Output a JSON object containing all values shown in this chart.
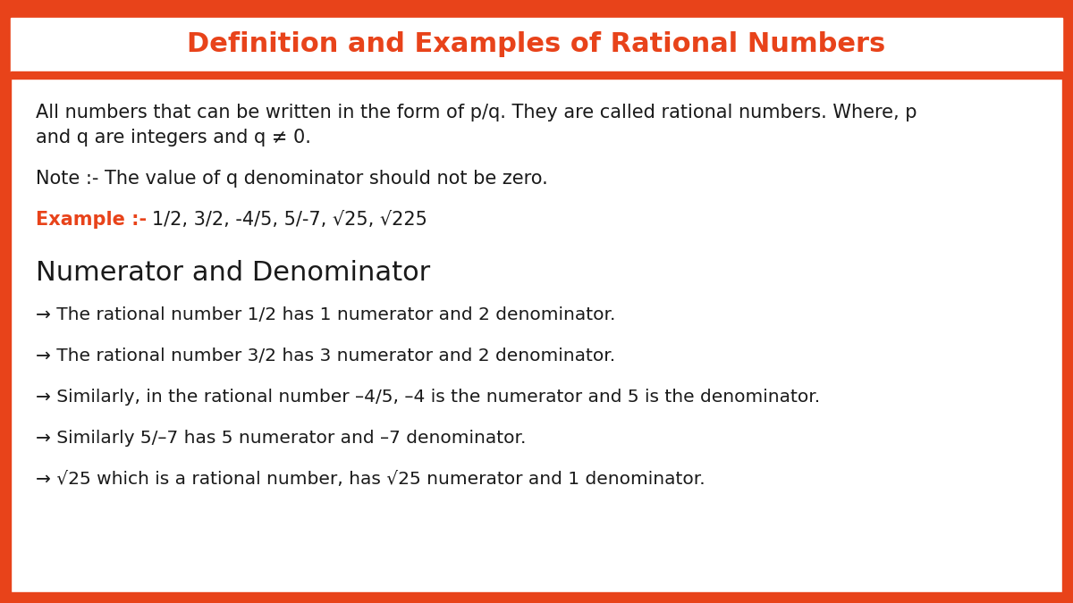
{
  "title": "Definition and Examples of Rational Numbers",
  "title_color": "#E8431A",
  "header_bg_color": "#FFFFFF",
  "border_color": "#E8431A",
  "bg_color": "#FFFFFF",
  "text_color": "#1A1A1A",
  "example_label_color": "#E8431A",
  "body_text_line1": "All numbers that can be written in the form of p/q. They are called rational numbers. Where, p",
  "body_text_line2": "and q are integers and q ≠ 0.",
  "note_text": "Note :- The value of q denominator should not be zero.",
  "example_label": "Example :-",
  "example_values": "   1/2, 3/2, -4/5, 5/-7, √25, √225",
  "subtitle": "Numerator and Denominator",
  "bullet_points": [
    "→ The rational number 1/2 has 1 numerator and 2 denominator.",
    "→ The rational number 3/2 has 3 numerator and 2 denominator.",
    "→ Similarly, in the rational number –4/5, –4 is the numerator and 5 is the denominator.",
    "→ Similarly 5/–7 has 5 numerator and –7 denominator.",
    "→ √25 which is a rational number, has √25 numerator and 1 denominator."
  ],
  "body_fontsize": 15,
  "title_fontsize": 22,
  "subtitle_fontsize": 22,
  "bullet_fontsize": 14.5,
  "example_fontsize": 15
}
